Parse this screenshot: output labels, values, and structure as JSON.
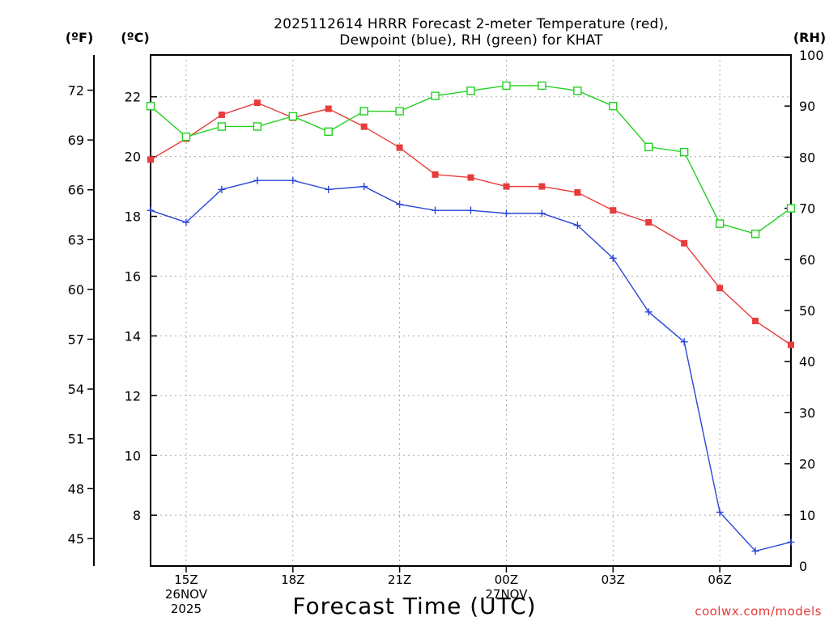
{
  "chart_data": {
    "type": "line",
    "title_lines": [
      "2025112614 HRRR Forecast 2-meter Temperature (red),",
      "Dewpoint (blue), RH (green) for KHAT"
    ],
    "unit_labels": {
      "fahrenheit": "(ºF)",
      "celsius": "(ºC)",
      "rh": "(RH)"
    },
    "xlabel": "Forecast Time (UTC)",
    "credit": "coolwx.com/models",
    "x_hours": [
      14,
      15,
      16,
      17,
      18,
      19,
      20,
      21,
      22,
      23,
      24,
      25,
      26,
      27,
      28,
      29,
      30,
      31,
      32
    ],
    "x_range": [
      14,
      32
    ],
    "x_ticks": [
      {
        "hour": 15,
        "lines": [
          "15Z",
          "26NOV",
          "2025"
        ]
      },
      {
        "hour": 18,
        "lines": [
          "18Z"
        ]
      },
      {
        "hour": 21,
        "lines": [
          "21Z"
        ]
      },
      {
        "hour": 24,
        "lines": [
          "00Z",
          "27NOV"
        ]
      },
      {
        "hour": 27,
        "lines": [
          "03Z"
        ]
      },
      {
        "hour": 30,
        "lines": [
          "06Z"
        ]
      }
    ],
    "celsius_range": [
      6.3,
      23.4
    ],
    "celsius_ticks": [
      8,
      10,
      12,
      14,
      16,
      18,
      20,
      22
    ],
    "fahrenheit_ticks": [
      45,
      48,
      51,
      54,
      57,
      60,
      63,
      66,
      69,
      72
    ],
    "rh_range": [
      0,
      100
    ],
    "rh_ticks": [
      0,
      10,
      20,
      30,
      40,
      50,
      60,
      70,
      80,
      90,
      100
    ],
    "series": [
      {
        "name": "Temperature",
        "axis": "celsius",
        "color": "#e83c3c",
        "marker": "filled-square",
        "values": [
          19.9,
          20.6,
          21.4,
          21.8,
          21.3,
          21.6,
          21.0,
          20.3,
          19.4,
          19.3,
          19.0,
          19.0,
          18.8,
          18.2,
          17.8,
          17.1,
          15.6,
          14.5,
          13.7
        ]
      },
      {
        "name": "Dewpoint",
        "axis": "celsius",
        "color": "#2a46d8",
        "marker": "plus",
        "values": [
          18.2,
          17.8,
          18.9,
          19.2,
          19.2,
          18.9,
          19.0,
          18.4,
          18.2,
          18.2,
          18.1,
          18.1,
          17.7,
          16.6,
          14.8,
          13.8,
          8.1,
          6.8,
          7.1
        ]
      },
      {
        "name": "RH",
        "axis": "rh",
        "color": "#22d022",
        "marker": "open-square",
        "values": [
          90,
          84,
          86,
          86,
          88,
          85,
          89,
          89,
          92,
          93,
          94,
          94,
          93,
          90,
          82,
          81,
          67,
          65,
          70
        ]
      }
    ]
  }
}
